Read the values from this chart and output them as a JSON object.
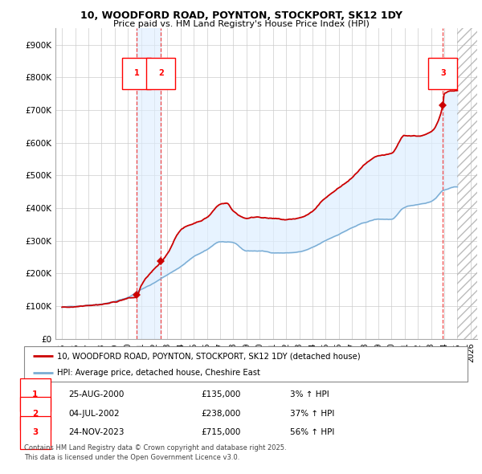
{
  "title": "10, WOODFORD ROAD, POYNTON, STOCKPORT, SK12 1DY",
  "subtitle": "Price paid vs. HM Land Registry's House Price Index (HPI)",
  "property_label": "10, WOODFORD ROAD, POYNTON, STOCKPORT, SK12 1DY (detached house)",
  "hpi_label": "HPI: Average price, detached house, Cheshire East",
  "footer": "Contains HM Land Registry data © Crown copyright and database right 2025.\nThis data is licensed under the Open Government Licence v3.0.",
  "transactions": [
    {
      "num": 1,
      "date": "25-AUG-2000",
      "price": 135000,
      "pct": "3%",
      "dir": "↑",
      "year": 2000.65
    },
    {
      "num": 2,
      "date": "04-JUL-2002",
      "price": 238000,
      "pct": "37%",
      "dir": "↑",
      "year": 2002.5
    },
    {
      "num": 3,
      "date": "24-NOV-2023",
      "price": 715000,
      "pct": "56%",
      "dir": "↑",
      "year": 2023.9
    }
  ],
  "property_color": "#cc0000",
  "hpi_color": "#7aadd4",
  "shade_color": "#ddeeff",
  "vline_color": "#ee3333",
  "background_color": "#ffffff",
  "grid_color": "#cccccc",
  "ylim": [
    0,
    950000
  ],
  "xlim_start": 1994.5,
  "xlim_end": 2026.5,
  "yticks": [
    0,
    100000,
    200000,
    300000,
    400000,
    500000,
    600000,
    700000,
    800000,
    900000
  ],
  "ytick_labels": [
    "£0",
    "£100K",
    "£200K",
    "£300K",
    "£400K",
    "£500K",
    "£600K",
    "£700K",
    "£800K",
    "£900K"
  ],
  "xticks": [
    1995,
    1996,
    1997,
    1998,
    1999,
    2000,
    2001,
    2002,
    2003,
    2004,
    2005,
    2006,
    2007,
    2008,
    2009,
    2010,
    2011,
    2012,
    2013,
    2014,
    2015,
    2016,
    2017,
    2018,
    2019,
    2020,
    2021,
    2022,
    2023,
    2024,
    2025,
    2026
  ],
  "hpi_anchors_x": [
    1995,
    1996,
    1997,
    1998,
    1999,
    2000,
    2001,
    2002,
    2003,
    2004,
    2005,
    2006,
    2007,
    2008,
    2009,
    2010,
    2011,
    2012,
    2013,
    2014,
    2015,
    2016,
    2017,
    2018,
    2019,
    2020,
    2021,
    2022,
    2023,
    2024,
    2025
  ],
  "hpi_anchors_y": [
    97000,
    100000,
    105000,
    110000,
    118000,
    130000,
    155000,
    175000,
    200000,
    225000,
    255000,
    275000,
    300000,
    295000,
    270000,
    270000,
    265000,
    265000,
    268000,
    280000,
    300000,
    320000,
    340000,
    355000,
    365000,
    365000,
    400000,
    410000,
    420000,
    455000,
    465000
  ],
  "prop_anchors_x": [
    1995,
    1996,
    1997,
    1998,
    1999,
    2000,
    2000.65,
    2001,
    2002,
    2002.5,
    2003,
    2004,
    2005,
    2006,
    2007,
    2007.5,
    2008,
    2009,
    2010,
    2011,
    2012,
    2013,
    2014,
    2015,
    2016,
    2017,
    2018,
    2019,
    2020,
    2021,
    2022,
    2023,
    2023.9,
    2024,
    2025
  ],
  "prop_anchors_y": [
    97000,
    100000,
    108000,
    113000,
    120000,
    132000,
    135000,
    170000,
    220000,
    238000,
    265000,
    340000,
    360000,
    380000,
    420000,
    425000,
    400000,
    380000,
    385000,
    380000,
    375000,
    380000,
    400000,
    440000,
    470000,
    500000,
    540000,
    560000,
    565000,
    620000,
    620000,
    630000,
    715000,
    750000,
    760000
  ]
}
